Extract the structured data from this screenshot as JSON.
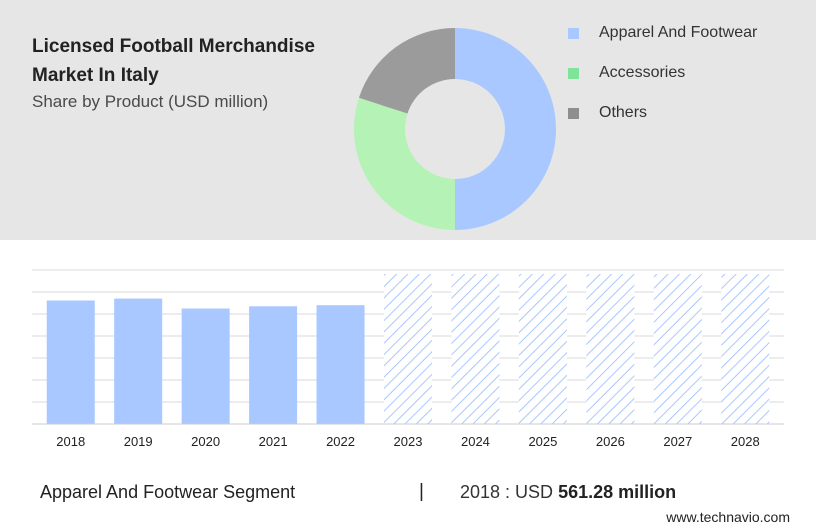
{
  "header": {
    "title": "Licensed Football Merchandise Market In Italy",
    "subtitle": "Share by Product (USD million)"
  },
  "colors": {
    "apparel": "#a8c8ff",
    "accessories": "#b5f2b5",
    "others": "#9b9b9b",
    "forecast_hatch": "#a8c8ff",
    "gridline": "#d9d9d9"
  },
  "legend": [
    {
      "label": "Apparel And Footwear",
      "color": "#a8c8ff"
    },
    {
      "label": "Accessories",
      "color": "#7fe39a"
    },
    {
      "label": "Others",
      "color": "#8e8e8e"
    }
  ],
  "chart_data": [
    {
      "type": "pie",
      "title": "Licensed Football Merchandise Market In Italy",
      "subtitle": "Share by Product (USD million)",
      "donut": true,
      "categories": [
        "Apparel And Footwear",
        "Accessories",
        "Others"
      ],
      "values": [
        50,
        30,
        20
      ]
    },
    {
      "type": "bar",
      "categories": [
        "2018",
        "2019",
        "2020",
        "2021",
        "2022",
        "2023",
        "2024",
        "2025",
        "2026",
        "2027",
        "2028"
      ],
      "values": [
        561.28,
        570,
        525,
        535,
        540,
        null,
        null,
        null,
        null,
        null,
        null
      ],
      "forecast_from": "2023",
      "ylim": [
        0,
        700
      ],
      "grid": true
    }
  ],
  "footer": {
    "segment_label": "Apparel And Footwear Segment",
    "divider": "|",
    "year_prefix": "2018 : USD",
    "value": "561.28 million"
  },
  "site": "www.technavio.com"
}
